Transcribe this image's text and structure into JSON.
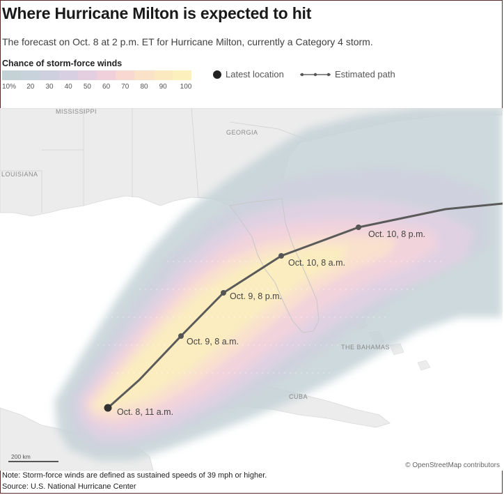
{
  "title": "Where Hurricane Milton is expected to hit",
  "subtitle": "The forecast on Oct. 8 at 2 p.m. ET for Hurricane Milton, currently a Category 4 storm.",
  "legend": {
    "title": "Chance of storm-force winds",
    "scale": [
      {
        "label": "10%",
        "color": "#c4d2d6"
      },
      {
        "label": "20",
        "color": "#c8d2db"
      },
      {
        "label": "30",
        "color": "#cfd0df"
      },
      {
        "label": "40",
        "color": "#d8cfe3"
      },
      {
        "label": "50",
        "color": "#e3cfe0"
      },
      {
        "label": "60",
        "color": "#f0d0da"
      },
      {
        "label": "70",
        "color": "#f8d8d0"
      },
      {
        "label": "80",
        "color": "#fae2c8"
      },
      {
        "label": "90",
        "color": "#fbeac0"
      },
      {
        "label": "100",
        "color": "#fcf0bc"
      }
    ],
    "latest_location": "Latest location",
    "estimated_path": "Estimated path"
  },
  "map_labels": {
    "mississippi": "MISSISSIPPI",
    "georgia": "GEORGIA",
    "louisiana": "LOUISIANA",
    "bahamas": "THE BAHAMAS",
    "cuba": "CUBA"
  },
  "track_points": [
    {
      "label": "Oct. 8, 11 a.m."
    },
    {
      "label": "Oct. 9, 8 a.m."
    },
    {
      "label": "Oct. 9, 8 p.m."
    },
    {
      "label": "Oct. 10, 8 a.m."
    },
    {
      "label": "Oct. 10, 8 p.m."
    }
  ],
  "colors": {
    "land": "#ececec",
    "track": "#5a5a5a",
    "marker": "#333333"
  },
  "scale_label": "200 km",
  "attribution": "© OpenStreetMap contributors",
  "note": "Note: Storm-force winds are defined as sustained speeds of 39 mph or higher.",
  "source": "Source: U.S. National Hurricane Center"
}
